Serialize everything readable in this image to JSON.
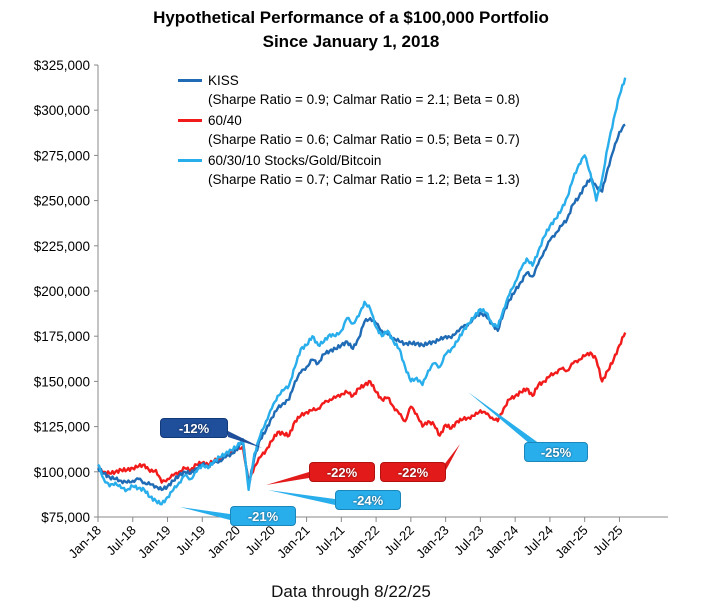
{
  "chart_data": {
    "type": "line",
    "title_line1": "Hypothetical Performance of a $100,000 Portfolio",
    "title_line2": "Since January 1, 2018",
    "footer": "Data through 8/22/25",
    "ylim": [
      75000,
      325000
    ],
    "yticks": [
      75000,
      100000,
      125000,
      150000,
      175000,
      200000,
      225000,
      250000,
      275000,
      300000,
      325000
    ],
    "ytick_labels": [
      "$75,000",
      "$100,000",
      "$125,000",
      "$150,000",
      "$175,000",
      "$200,000",
      "$225,000",
      "$250,000",
      "$275,000",
      "$300,000",
      "$325,000"
    ],
    "xticks": [
      "Jan-18",
      "Jul-18",
      "Jan-19",
      "Jul-19",
      "Jan-20",
      "Jul-20",
      "Jan-21",
      "Jul-21",
      "Jan-22",
      "Jul-22",
      "Jan-23",
      "Jul-23",
      "Jan-24",
      "Jul-24",
      "Jan-25",
      "Jul-25"
    ],
    "grid": false,
    "legend_position": "top-left",
    "series": [
      {
        "name": "KISS",
        "stats": "(Sharpe Ratio = 0.9; Calmar Ratio = 2.1; Beta = 0.8)",
        "color": "#1F6BB5",
        "x": [
          "Jan-18",
          "Feb-18",
          "Mar-18",
          "Apr-18",
          "May-18",
          "Jun-18",
          "Jul-18",
          "Aug-18",
          "Sep-18",
          "Oct-18",
          "Nov-18",
          "Dec-18",
          "Jan-19",
          "Feb-19",
          "Mar-19",
          "Apr-19",
          "May-19",
          "Jun-19",
          "Jul-19",
          "Aug-19",
          "Sep-19",
          "Oct-19",
          "Nov-19",
          "Dec-19",
          "Jan-20",
          "Feb-20",
          "Mar-20",
          "Apr-20",
          "May-20",
          "Jun-20",
          "Jul-20",
          "Aug-20",
          "Sep-20",
          "Oct-20",
          "Nov-20",
          "Dec-20",
          "Jan-21",
          "Feb-21",
          "Mar-21",
          "Apr-21",
          "May-21",
          "Jun-21",
          "Jul-21",
          "Aug-21",
          "Sep-21",
          "Oct-21",
          "Nov-21",
          "Dec-21",
          "Jan-22",
          "Feb-22",
          "Mar-22",
          "Apr-22",
          "May-22",
          "Jun-22",
          "Jul-22",
          "Aug-22",
          "Sep-22",
          "Oct-22",
          "Nov-22",
          "Dec-22",
          "Jan-23",
          "Feb-23",
          "Mar-23",
          "Apr-23",
          "May-23",
          "Jun-23",
          "Jul-23",
          "Aug-23",
          "Sep-23",
          "Oct-23",
          "Nov-23",
          "Dec-23",
          "Jan-24",
          "Feb-24",
          "Mar-24",
          "Apr-24",
          "May-24",
          "Jun-24",
          "Jul-24",
          "Aug-24",
          "Sep-24",
          "Oct-24",
          "Nov-24",
          "Dec-24",
          "Jan-25",
          "Feb-25",
          "Mar-25",
          "Apr-25",
          "May-25",
          "Jun-25",
          "Jul-25",
          "Aug-25"
        ],
        "values": [
          102000,
          99000,
          97000,
          96000,
          95000,
          94000,
          95000,
          96000,
          94000,
          93000,
          92000,
          90000,
          92000,
          95000,
          98000,
          100000,
          99000,
          102000,
          104000,
          103000,
          105000,
          106000,
          108000,
          110000,
          112000,
          118000,
          92000,
          108000,
          118000,
          123000,
          130000,
          135000,
          138000,
          140000,
          150000,
          155000,
          158000,
          162000,
          160000,
          165000,
          167000,
          168000,
          170000,
          172000,
          168000,
          174000,
          183000,
          185000,
          182000,
          178000,
          176000,
          174000,
          172000,
          171000,
          171000,
          171000,
          170000,
          171000,
          172000,
          173000,
          175000,
          174000,
          178000,
          180000,
          182000,
          185000,
          188000,
          186000,
          182000,
          178000,
          188000,
          195000,
          200000,
          205000,
          210000,
          208000,
          215000,
          222000,
          228000,
          232000,
          236000,
          240000,
          248000,
          252000,
          258000,
          262000,
          258000,
          255000,
          268000,
          278000,
          288000,
          292000
        ]
      },
      {
        "name": "60/40",
        "stats": "(Sharpe Ratio = 0.6; Calmar Ratio = 0.5; Beta = 0.7)",
        "color": "#F21B1B",
        "x": [
          "Jan-18",
          "Feb-18",
          "Mar-18",
          "Apr-18",
          "May-18",
          "Jun-18",
          "Jul-18",
          "Aug-18",
          "Sep-18",
          "Oct-18",
          "Nov-18",
          "Dec-18",
          "Jan-19",
          "Feb-19",
          "Mar-19",
          "Apr-19",
          "May-19",
          "Jun-19",
          "Jul-19",
          "Aug-19",
          "Sep-19",
          "Oct-19",
          "Nov-19",
          "Dec-19",
          "Jan-20",
          "Feb-20",
          "Mar-20",
          "Apr-20",
          "May-20",
          "Jun-20",
          "Jul-20",
          "Aug-20",
          "Sep-20",
          "Oct-20",
          "Nov-20",
          "Dec-20",
          "Jan-21",
          "Feb-21",
          "Mar-21",
          "Apr-21",
          "May-21",
          "Jun-21",
          "Jul-21",
          "Aug-21",
          "Sep-21",
          "Oct-21",
          "Nov-21",
          "Dec-21",
          "Jan-22",
          "Feb-22",
          "Mar-22",
          "Apr-22",
          "May-22",
          "Jun-22",
          "Jul-22",
          "Aug-22",
          "Sep-22",
          "Oct-22",
          "Nov-22",
          "Dec-22",
          "Jan-23",
          "Feb-23",
          "Mar-23",
          "Apr-23",
          "May-23",
          "Jun-23",
          "Jul-23",
          "Aug-23",
          "Sep-23",
          "Oct-23",
          "Nov-23",
          "Dec-23",
          "Jan-24",
          "Feb-24",
          "Mar-24",
          "Apr-24",
          "May-24",
          "Jun-24",
          "Jul-24",
          "Aug-24",
          "Sep-24",
          "Oct-24",
          "Nov-24",
          "Dec-24",
          "Jan-25",
          "Feb-25",
          "Mar-25",
          "Apr-25",
          "May-25",
          "Jun-25",
          "Jul-25",
          "Aug-25"
        ],
        "values": [
          102000,
          100000,
          99000,
          100000,
          101000,
          101000,
          102000,
          103000,
          104000,
          100000,
          101000,
          94000,
          96000,
          98000,
          100000,
          102000,
          101000,
          104000,
          105000,
          104000,
          106000,
          107000,
          109000,
          111000,
          112000,
          114000,
          94000,
          103000,
          108000,
          112000,
          117000,
          122000,
          121000,
          120000,
          128000,
          131000,
          133000,
          134000,
          135000,
          138000,
          140000,
          141000,
          143000,
          144000,
          142000,
          146000,
          148000,
          150000,
          144000,
          140000,
          141000,
          136000,
          132000,
          128000,
          136000,
          132000,
          125000,
          128000,
          126000,
          120000,
          126000,
          124000,
          128000,
          129000,
          130000,
          131000,
          134000,
          132000,
          130000,
          128000,
          135000,
          140000,
          142000,
          144000,
          146000,
          142000,
          148000,
          150000,
          153000,
          155000,
          157000,
          156000,
          160000,
          162000,
          164000,
          166000,
          162000,
          150000,
          156000,
          162000,
          170000,
          177000
        ]
      },
      {
        "name": "60/30/10 Stocks/Gold/Bitcoin",
        "stats": "(Sharpe Ratio = 0.7; Calmar Ratio = 1.2; Beta = 1.3)",
        "color": "#29AEEC",
        "x": [
          "Jan-18",
          "Feb-18",
          "Mar-18",
          "Apr-18",
          "May-18",
          "Jun-18",
          "Jul-18",
          "Aug-18",
          "Sep-18",
          "Oct-18",
          "Nov-18",
          "Dec-18",
          "Jan-19",
          "Feb-19",
          "Mar-19",
          "Apr-19",
          "May-19",
          "Jun-19",
          "Jul-19",
          "Aug-19",
          "Sep-19",
          "Oct-19",
          "Nov-19",
          "Dec-19",
          "Jan-20",
          "Feb-20",
          "Mar-20",
          "Apr-20",
          "May-20",
          "Jun-20",
          "Jul-20",
          "Aug-20",
          "Sep-20",
          "Oct-20",
          "Nov-20",
          "Dec-20",
          "Jan-21",
          "Feb-21",
          "Mar-21",
          "Apr-21",
          "May-21",
          "Jun-21",
          "Jul-21",
          "Aug-21",
          "Sep-21",
          "Oct-21",
          "Nov-21",
          "Dec-21",
          "Jan-22",
          "Feb-22",
          "Mar-22",
          "Apr-22",
          "May-22",
          "Jun-22",
          "Jul-22",
          "Aug-22",
          "Sep-22",
          "Oct-22",
          "Nov-22",
          "Dec-22",
          "Jan-23",
          "Feb-23",
          "Mar-23",
          "Apr-23",
          "May-23",
          "Jun-23",
          "Jul-23",
          "Aug-23",
          "Sep-23",
          "Oct-23",
          "Nov-23",
          "Dec-23",
          "Jan-24",
          "Feb-24",
          "Mar-24",
          "Apr-24",
          "May-24",
          "Jun-24",
          "Jul-24",
          "Aug-24",
          "Sep-24",
          "Oct-24",
          "Nov-24",
          "Dec-24",
          "Jan-25",
          "Feb-25",
          "Mar-25",
          "Apr-25",
          "May-25",
          "Jun-25",
          "Jul-25",
          "Aug-25"
        ],
        "values": [
          104000,
          96000,
          92000,
          94000,
          91000,
          90000,
          92000,
          91000,
          90000,
          86000,
          84000,
          82000,
          86000,
          90000,
          94000,
          98000,
          96000,
          100000,
          104000,
          102000,
          106000,
          108000,
          110000,
          112000,
          114000,
          118000,
          90000,
          110000,
          120000,
          128000,
          135000,
          142000,
          145000,
          148000,
          158000,
          168000,
          170000,
          175000,
          170000,
          172000,
          176000,
          175000,
          178000,
          185000,
          182000,
          186000,
          194000,
          190000,
          180000,
          175000,
          178000,
          172000,
          168000,
          158000,
          150000,
          152000,
          148000,
          156000,
          160000,
          158000,
          165000,
          168000,
          172000,
          178000,
          182000,
          186000,
          190000,
          188000,
          182000,
          180000,
          190000,
          198000,
          205000,
          212000,
          218000,
          214000,
          222000,
          230000,
          236000,
          240000,
          245000,
          252000,
          262000,
          270000,
          275000,
          265000,
          250000,
          262000,
          280000,
          295000,
          308000,
          318000
        ]
      }
    ],
    "annotations": [
      {
        "label": "-12%",
        "series": "KISS"
      },
      {
        "label": "-22%",
        "series": "60/40"
      },
      {
        "label": "-22%",
        "series": "60/40"
      },
      {
        "label": "-24%",
        "series": "60/30/10 Stocks/Gold/Bitcoin"
      },
      {
        "label": "-21%",
        "series": "60/30/10 Stocks/Gold/Bitcoin"
      },
      {
        "label": "-25%",
        "series": "60/30/10 Stocks/Gold/Bitcoin"
      }
    ]
  },
  "colors": {
    "kiss_callout_fill": "#1F4E9A",
    "red_callout_fill": "#E31A1A",
    "light_callout_fill": "#29AEEC"
  }
}
